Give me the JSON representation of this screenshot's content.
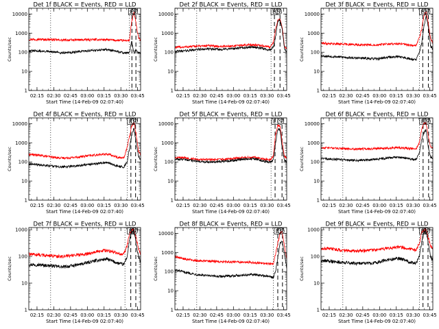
{
  "chart_data": {
    "type": "line",
    "x_ticks": [
      "02:15",
      "02:30",
      "02:45",
      "03:00",
      "03:15",
      "03:30",
      "03:45"
    ],
    "x_range_minutes_after_0207_40": [
      0,
      100
    ],
    "xlabel": "Start Time (14-Feb-09 02:07:40)",
    "ylabel": "Counts/sec",
    "yscale": "log",
    "y_ticks": [
      1,
      10,
      100,
      1000,
      10000
    ],
    "legend_colors": {
      "events": "#000000",
      "lld": "#ff0000"
    },
    "markers": [
      "E",
      "S"
    ],
    "panels": [
      {
        "title": "Det 1f BLACK = Events, RED = LLD",
        "ylim": [
          1,
          20000
        ],
        "y_ticks": [
          "1",
          "10",
          "100",
          "1000",
          "10000"
        ],
        "vlines_dotted_min": [
          19.5,
          90
        ],
        "vlines_dashed_min": [
          92.2,
          95.8
        ],
        "events": {
          "x_min": [
            0,
            10,
            20,
            30,
            40,
            50,
            60,
            70,
            80,
            85,
            90,
            92,
            94,
            96,
            98,
            100
          ],
          "counts": [
            120,
            115,
            105,
            95,
            100,
            115,
            130,
            140,
            105,
            95,
            90,
            400,
            95,
            130,
            90,
            85
          ]
        },
        "lld": {
          "x_min": [
            0,
            10,
            20,
            30,
            40,
            50,
            60,
            70,
            80,
            85,
            90,
            92,
            94,
            96,
            98,
            100
          ],
          "counts": [
            480,
            470,
            460,
            430,
            440,
            450,
            460,
            450,
            420,
            410,
            420,
            4000,
            12000,
            3000,
            600,
            400
          ]
        }
      },
      {
        "title": "Det 2f BLACK = Events, RED = LLD",
        "ylim": [
          1,
          20000
        ],
        "y_ticks": [
          "1",
          "10",
          "100",
          "1000",
          "10000"
        ],
        "vlines_dotted_min": [
          19.5,
          86
        ],
        "vlines_dashed_min": [
          89,
          94
        ],
        "events": {
          "x_min": [
            0,
            10,
            20,
            30,
            40,
            50,
            60,
            70,
            80,
            85,
            88,
            90,
            92,
            94,
            96,
            98,
            100
          ],
          "counts": [
            110,
            120,
            140,
            150,
            140,
            150,
            170,
            190,
            150,
            130,
            180,
            600,
            4000,
            5000,
            1500,
            150,
            100
          ]
        },
        "lld": {
          "x_min": [
            0,
            10,
            20,
            30,
            40,
            50,
            60,
            70,
            80,
            85,
            88,
            90,
            92,
            94,
            96,
            98,
            100
          ],
          "counts": [
            180,
            190,
            210,
            220,
            200,
            210,
            230,
            250,
            210,
            190,
            300,
            1500,
            5000,
            5000,
            2000,
            200,
            150
          ]
        }
      },
      {
        "title": "Det 3f BLACK = Events, RED = LLD",
        "ylim": [
          1,
          20000
        ],
        "y_ticks": [
          "1",
          "10",
          "100",
          "1000",
          "10000"
        ],
        "vlines_dotted_min": [
          19.5,
          88
        ],
        "vlines_dashed_min": [
          91,
          96
        ],
        "events": {
          "x_min": [
            0,
            10,
            20,
            30,
            40,
            50,
            60,
            70,
            80,
            85,
            88,
            90,
            92,
            94,
            96,
            98,
            100
          ],
          "counts": [
            65,
            60,
            55,
            50,
            48,
            45,
            55,
            60,
            45,
            40,
            100,
            300,
            2000,
            8000,
            2000,
            200,
            150
          ]
        },
        "lld": {
          "x_min": [
            0,
            10,
            20,
            30,
            40,
            50,
            60,
            70,
            80,
            85,
            88,
            90,
            92,
            94,
            96,
            98,
            100
          ],
          "counts": [
            300,
            280,
            270,
            250,
            240,
            250,
            270,
            280,
            230,
            220,
            600,
            1500,
            8000,
            15000,
            3000,
            500,
            300
          ]
        }
      },
      {
        "title": "Det 4f BLACK = Events, RED = LLD",
        "ylim": [
          1,
          20000
        ],
        "y_ticks": [
          "1",
          "10",
          "100",
          "1000",
          "10000"
        ],
        "vlines_dotted_min": [
          19.5,
          88
        ],
        "vlines_dashed_min": [
          91.3,
          95.5
        ],
        "events": {
          "x_min": [
            0,
            10,
            20,
            30,
            40,
            50,
            60,
            70,
            80,
            85,
            88,
            90,
            92,
            94,
            96,
            98,
            100
          ],
          "counts": [
            80,
            70,
            60,
            55,
            60,
            70,
            80,
            95,
            60,
            55,
            100,
            500,
            2500,
            6000,
            1000,
            200,
            120
          ]
        },
        "lld": {
          "x_min": [
            0,
            10,
            20,
            30,
            40,
            50,
            60,
            70,
            80,
            85,
            88,
            90,
            92,
            94,
            96,
            98,
            100
          ],
          "counts": [
            250,
            220,
            180,
            160,
            170,
            200,
            230,
            260,
            170,
            160,
            600,
            2000,
            8000,
            12000,
            3000,
            400,
            250
          ]
        }
      },
      {
        "title": "Det 5f BLACK = Events, RED = LLD",
        "ylim": [
          1,
          20000
        ],
        "y_ticks": [
          "1",
          "10",
          "100",
          "1000",
          "10000"
        ],
        "vlines_dotted_min": [
          19.5,
          86
        ],
        "vlines_dashed_min": [
          89.6,
          95.8
        ],
        "events": {
          "x_min": [
            0,
            10,
            20,
            30,
            40,
            50,
            60,
            70,
            80,
            85,
            88,
            90,
            92,
            94,
            96,
            98,
            100
          ],
          "counts": [
            140,
            130,
            110,
            100,
            105,
            115,
            135,
            150,
            110,
            100,
            120,
            1000,
            5000,
            5000,
            500,
            120,
            100
          ]
        },
        "lld": {
          "x_min": [
            0,
            10,
            20,
            30,
            40,
            50,
            60,
            70,
            80,
            85,
            88,
            90,
            92,
            94,
            96,
            98,
            100
          ],
          "counts": [
            170,
            160,
            140,
            130,
            135,
            145,
            165,
            180,
            140,
            130,
            200,
            2500,
            8000,
            8000,
            1000,
            200,
            150
          ]
        }
      },
      {
        "title": "Det 6f BLACK = Events, RED = LLD",
        "ylim": [
          1,
          20000
        ],
        "y_ticks": [
          "1",
          "10",
          "100",
          "1000",
          "10000"
        ],
        "vlines_dotted_min": [
          19.5,
          88
        ],
        "vlines_dashed_min": [
          91.3,
          96.2
        ],
        "events": {
          "x_min": [
            0,
            10,
            20,
            30,
            40,
            50,
            60,
            70,
            80,
            85,
            88,
            90,
            92,
            94,
            96,
            98,
            100
          ],
          "counts": [
            150,
            140,
            130,
            120,
            125,
            140,
            160,
            180,
            140,
            130,
            300,
            1500,
            3000,
            5000,
            600,
            180,
            150
          ]
        },
        "lld": {
          "x_min": [
            0,
            10,
            20,
            30,
            40,
            50,
            60,
            70,
            80,
            85,
            88,
            90,
            92,
            94,
            96,
            98,
            100
          ],
          "counts": [
            550,
            530,
            500,
            470,
            480,
            500,
            530,
            550,
            500,
            480,
            1000,
            5000,
            10000,
            12000,
            2000,
            600,
            500
          ]
        }
      },
      {
        "title": "Det 7f BLACK = Events, RED = LLD",
        "ylim": [
          1,
          1200
        ],
        "y_ticks": [
          "1",
          "10",
          "100",
          "1000"
        ],
        "vlines_dotted_min": [
          19.5,
          86
        ],
        "vlines_dashed_min": [
          91.2,
          95.7
        ],
        "events": {
          "x_min": [
            0,
            10,
            20,
            30,
            40,
            50,
            60,
            70,
            80,
            85,
            88,
            90,
            92,
            94,
            96,
            98,
            100
          ],
          "counts": [
            50,
            48,
            45,
            40,
            45,
            55,
            70,
            80,
            55,
            50,
            100,
            400,
            800,
            900,
            300,
            100,
            60
          ]
        },
        "lld": {
          "x_min": [
            0,
            10,
            20,
            30,
            40,
            50,
            60,
            70,
            80,
            85,
            88,
            90,
            92,
            94,
            96,
            98,
            100
          ],
          "counts": [
            120,
            115,
            105,
            100,
            110,
            120,
            150,
            170,
            130,
            120,
            250,
            700,
            1000,
            1000,
            500,
            200,
            120
          ]
        }
      },
      {
        "title": "Det 8f BLACK = Events, RED = LLD",
        "ylim": [
          1,
          20000
        ],
        "y_ticks": [
          "1",
          "10",
          "100",
          "1000",
          "10000"
        ],
        "vlines_dotted_min": [
          19.5,
          88
        ],
        "vlines_dashed_min": [
          92,
          96.2
        ],
        "events": {
          "x_min": [
            0,
            10,
            20,
            30,
            40,
            50,
            60,
            70,
            80,
            85,
            88,
            90,
            92,
            94,
            96,
            98,
            100
          ],
          "counts": [
            120,
            90,
            70,
            60,
            55,
            60,
            65,
            70,
            60,
            55,
            50,
            100,
            500,
            3000,
            4000,
            800,
            150
          ]
        },
        "lld": {
          "x_min": [
            0,
            10,
            20,
            30,
            40,
            50,
            60,
            70,
            80,
            85,
            88,
            90,
            92,
            94,
            96,
            98,
            100
          ],
          "counts": [
            600,
            450,
            380,
            350,
            330,
            320,
            320,
            300,
            260,
            250,
            260,
            800,
            3000,
            10000,
            12000,
            2000,
            400
          ]
        }
      },
      {
        "title": "Det 9f BLACK = Events, RED = LLD",
        "ylim": [
          1,
          1200
        ],
        "y_ticks": [
          "1",
          "10",
          "100",
          "1000"
        ],
        "vlines_dotted_min": [
          19.5,
          88
        ],
        "vlines_dashed_min": [
          91.2,
          95.7
        ],
        "events": {
          "x_min": [
            0,
            10,
            20,
            30,
            40,
            50,
            60,
            70,
            80,
            85,
            88,
            90,
            92,
            94,
            96,
            98,
            100
          ],
          "counts": [
            70,
            65,
            60,
            55,
            55,
            60,
            75,
            85,
            60,
            55,
            100,
            350,
            800,
            900,
            300,
            100,
            70
          ]
        },
        "lld": {
          "x_min": [
            0,
            10,
            20,
            30,
            40,
            50,
            60,
            70,
            80,
            85,
            88,
            90,
            92,
            94,
            96,
            98,
            100
          ],
          "counts": [
            200,
            190,
            170,
            160,
            165,
            175,
            200,
            230,
            190,
            175,
            300,
            800,
            1000,
            1000,
            500,
            250,
            200
          ]
        }
      }
    ]
  }
}
